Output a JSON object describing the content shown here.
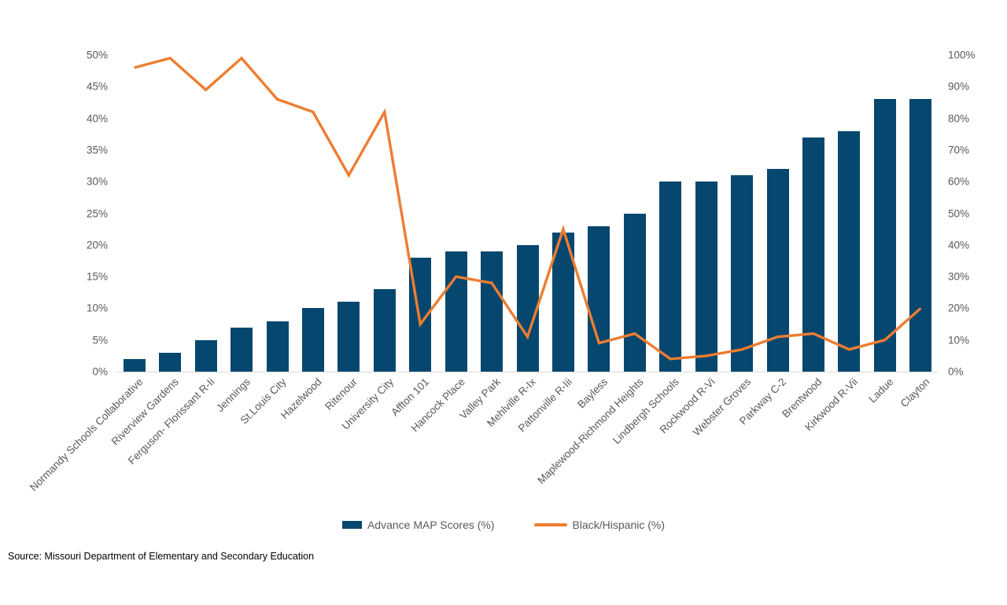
{
  "chart_data": {
    "type": "combo-bar-line",
    "title": "",
    "categories": [
      "Normandy Schools Collaborative",
      "Riverview Gardens",
      "Ferguson- Florissant R-Ii",
      "Jennings",
      "St.Louis City",
      "Hazelwood",
      "Ritenour",
      "University City",
      "Affton 101",
      "Hancock Place",
      "Valley Park",
      "Mehlville R-Ix",
      "Pattonville R-Iii",
      "Bayless",
      "Maplewood-Richmond Heights",
      "Lindbergh Schools",
      "Rockwood R-Vi",
      "Webster Groves",
      "Parkway C-2",
      "Brentwood",
      "Kirkwood R-Vii",
      "Ladue",
      "Clayton"
    ],
    "series": [
      {
        "name": "Advance MAP Scores (%)",
        "type": "bar",
        "axis": "left",
        "color": "#05476E",
        "values": [
          2,
          3,
          5,
          7,
          8,
          10,
          11,
          13,
          18,
          19,
          19,
          20,
          22,
          23,
          25,
          30,
          30,
          31,
          32,
          37,
          38,
          43,
          43
        ]
      },
      {
        "name": "Black/Hispanic (%)",
        "type": "line",
        "axis": "right",
        "color": "#ED7D31",
        "values": [
          96,
          99,
          89,
          99,
          86,
          82,
          62,
          82,
          15,
          30,
          28,
          11,
          45,
          9,
          12,
          4,
          5,
          7,
          11,
          12,
          7,
          10,
          20
        ]
      }
    ],
    "left_axis": {
      "min": 0,
      "max": 50,
      "step": 5,
      "unit": "%"
    },
    "right_axis": {
      "min": 0,
      "max": 100,
      "step": 10,
      "unit": "%"
    },
    "grid": false,
    "legend_position": "bottom-center"
  },
  "colors": {
    "axis_text": "#595959",
    "axis_line": "#D9D9D9"
  },
  "source_note": "Source: Missouri Department of Elementary and Secondary Education"
}
